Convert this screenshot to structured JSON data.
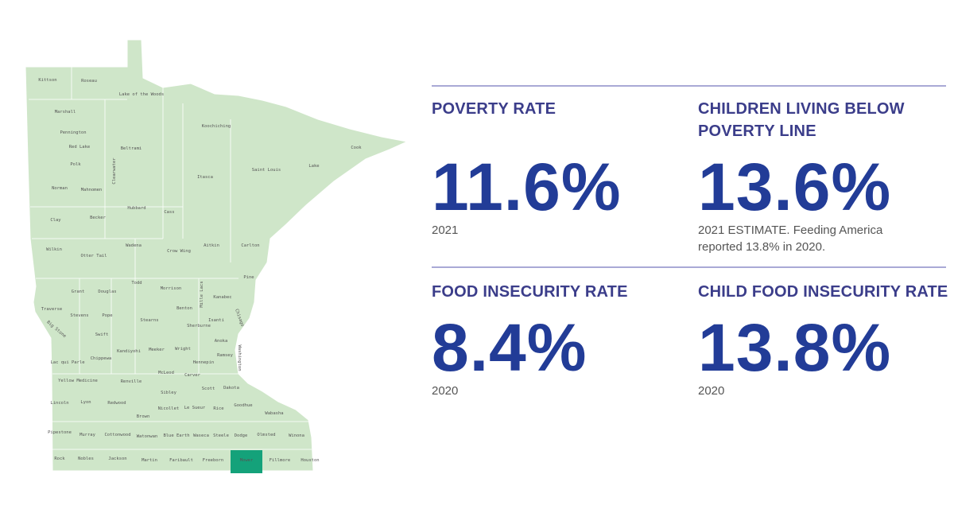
{
  "map": {
    "base_color": "#cfe6c9",
    "highlight_color": "#14a27a",
    "highlighted_county": "Mower",
    "counties": [
      "Kittson",
      "Roseau",
      "Lake of the Woods",
      "Marshall",
      "Pennington",
      "Red Lake",
      "Koochiching",
      "Beltrami",
      "Cook",
      "Polk",
      "Lake",
      "Saint Louis",
      "Itasca",
      "Clearwater",
      "Norman",
      "Mahnomen",
      "Hubbard",
      "Cass",
      "Clay",
      "Becker",
      "Carlton",
      "Aitkin",
      "Wilkin",
      "Otter Tail",
      "Wadena",
      "Crow Wing",
      "Pine",
      "Todd",
      "Grant",
      "Douglas",
      "Morrison",
      "Mille Lacs",
      "Kanabec",
      "Traverse",
      "Stevens",
      "Pope",
      "Benton",
      "Big Stone",
      "Stearns",
      "Isanti",
      "Chisago",
      "Sherburne",
      "Swift",
      "Anoka",
      "Kandiyohi",
      "Meeker",
      "Wright",
      "Washington",
      "Ramsey",
      "Hennepin",
      "Lac qui Parle",
      "Chippewa",
      "McLeod",
      "Carver",
      "Renville",
      "Yellow Medicine",
      "Scott",
      "Dakota",
      "Sibley",
      "Lincoln",
      "Lyon",
      "Redwood",
      "Nicollet",
      "Le Sueur",
      "Rice",
      "Goodhue",
      "Wabasha",
      "Brown",
      "Pipestone",
      "Murray",
      "Cottonwood",
      "Watonwan",
      "Blue Earth",
      "Waseca",
      "Steele",
      "Dodge",
      "Olmsted",
      "Winona",
      "Rock",
      "Nobles",
      "Jackson",
      "Martin",
      "Faribault",
      "Freeborn",
      "Mower",
      "Fillmore",
      "Houston"
    ]
  },
  "stats": [
    {
      "title": "POVERTY RATE",
      "value": "11.6%",
      "note": "2021"
    },
    {
      "title": "CHILDREN LIVING BELOW POVERTY LINE",
      "value": "13.6%",
      "note": "2021 ESTIMATE. Feeding America reported 13.8% in 2020."
    },
    {
      "title": "FOOD INSECURITY RATE",
      "value": "8.4%",
      "note": "2020"
    },
    {
      "title": "CHILD FOOD INSECURITY RATE",
      "value": "13.8%",
      "note": "2020"
    }
  ],
  "chart_data": {
    "type": "table",
    "series": [
      {
        "name": "POVERTY RATE",
        "value": 11.6,
        "unit": "%",
        "year": "2021"
      },
      {
        "name": "CHILDREN LIVING BELOW POVERTY LINE",
        "value": 13.6,
        "unit": "%",
        "year": "2021"
      },
      {
        "name": "FOOD INSECURITY RATE",
        "value": 8.4,
        "unit": "%",
        "year": "2020"
      },
      {
        "name": "CHILD FOOD INSECURITY RATE",
        "value": 13.8,
        "unit": "%",
        "year": "2020"
      }
    ]
  },
  "colors": {
    "heading": "#3b3d8a",
    "number": "#223c97",
    "rule": "#a9a9d6"
  }
}
